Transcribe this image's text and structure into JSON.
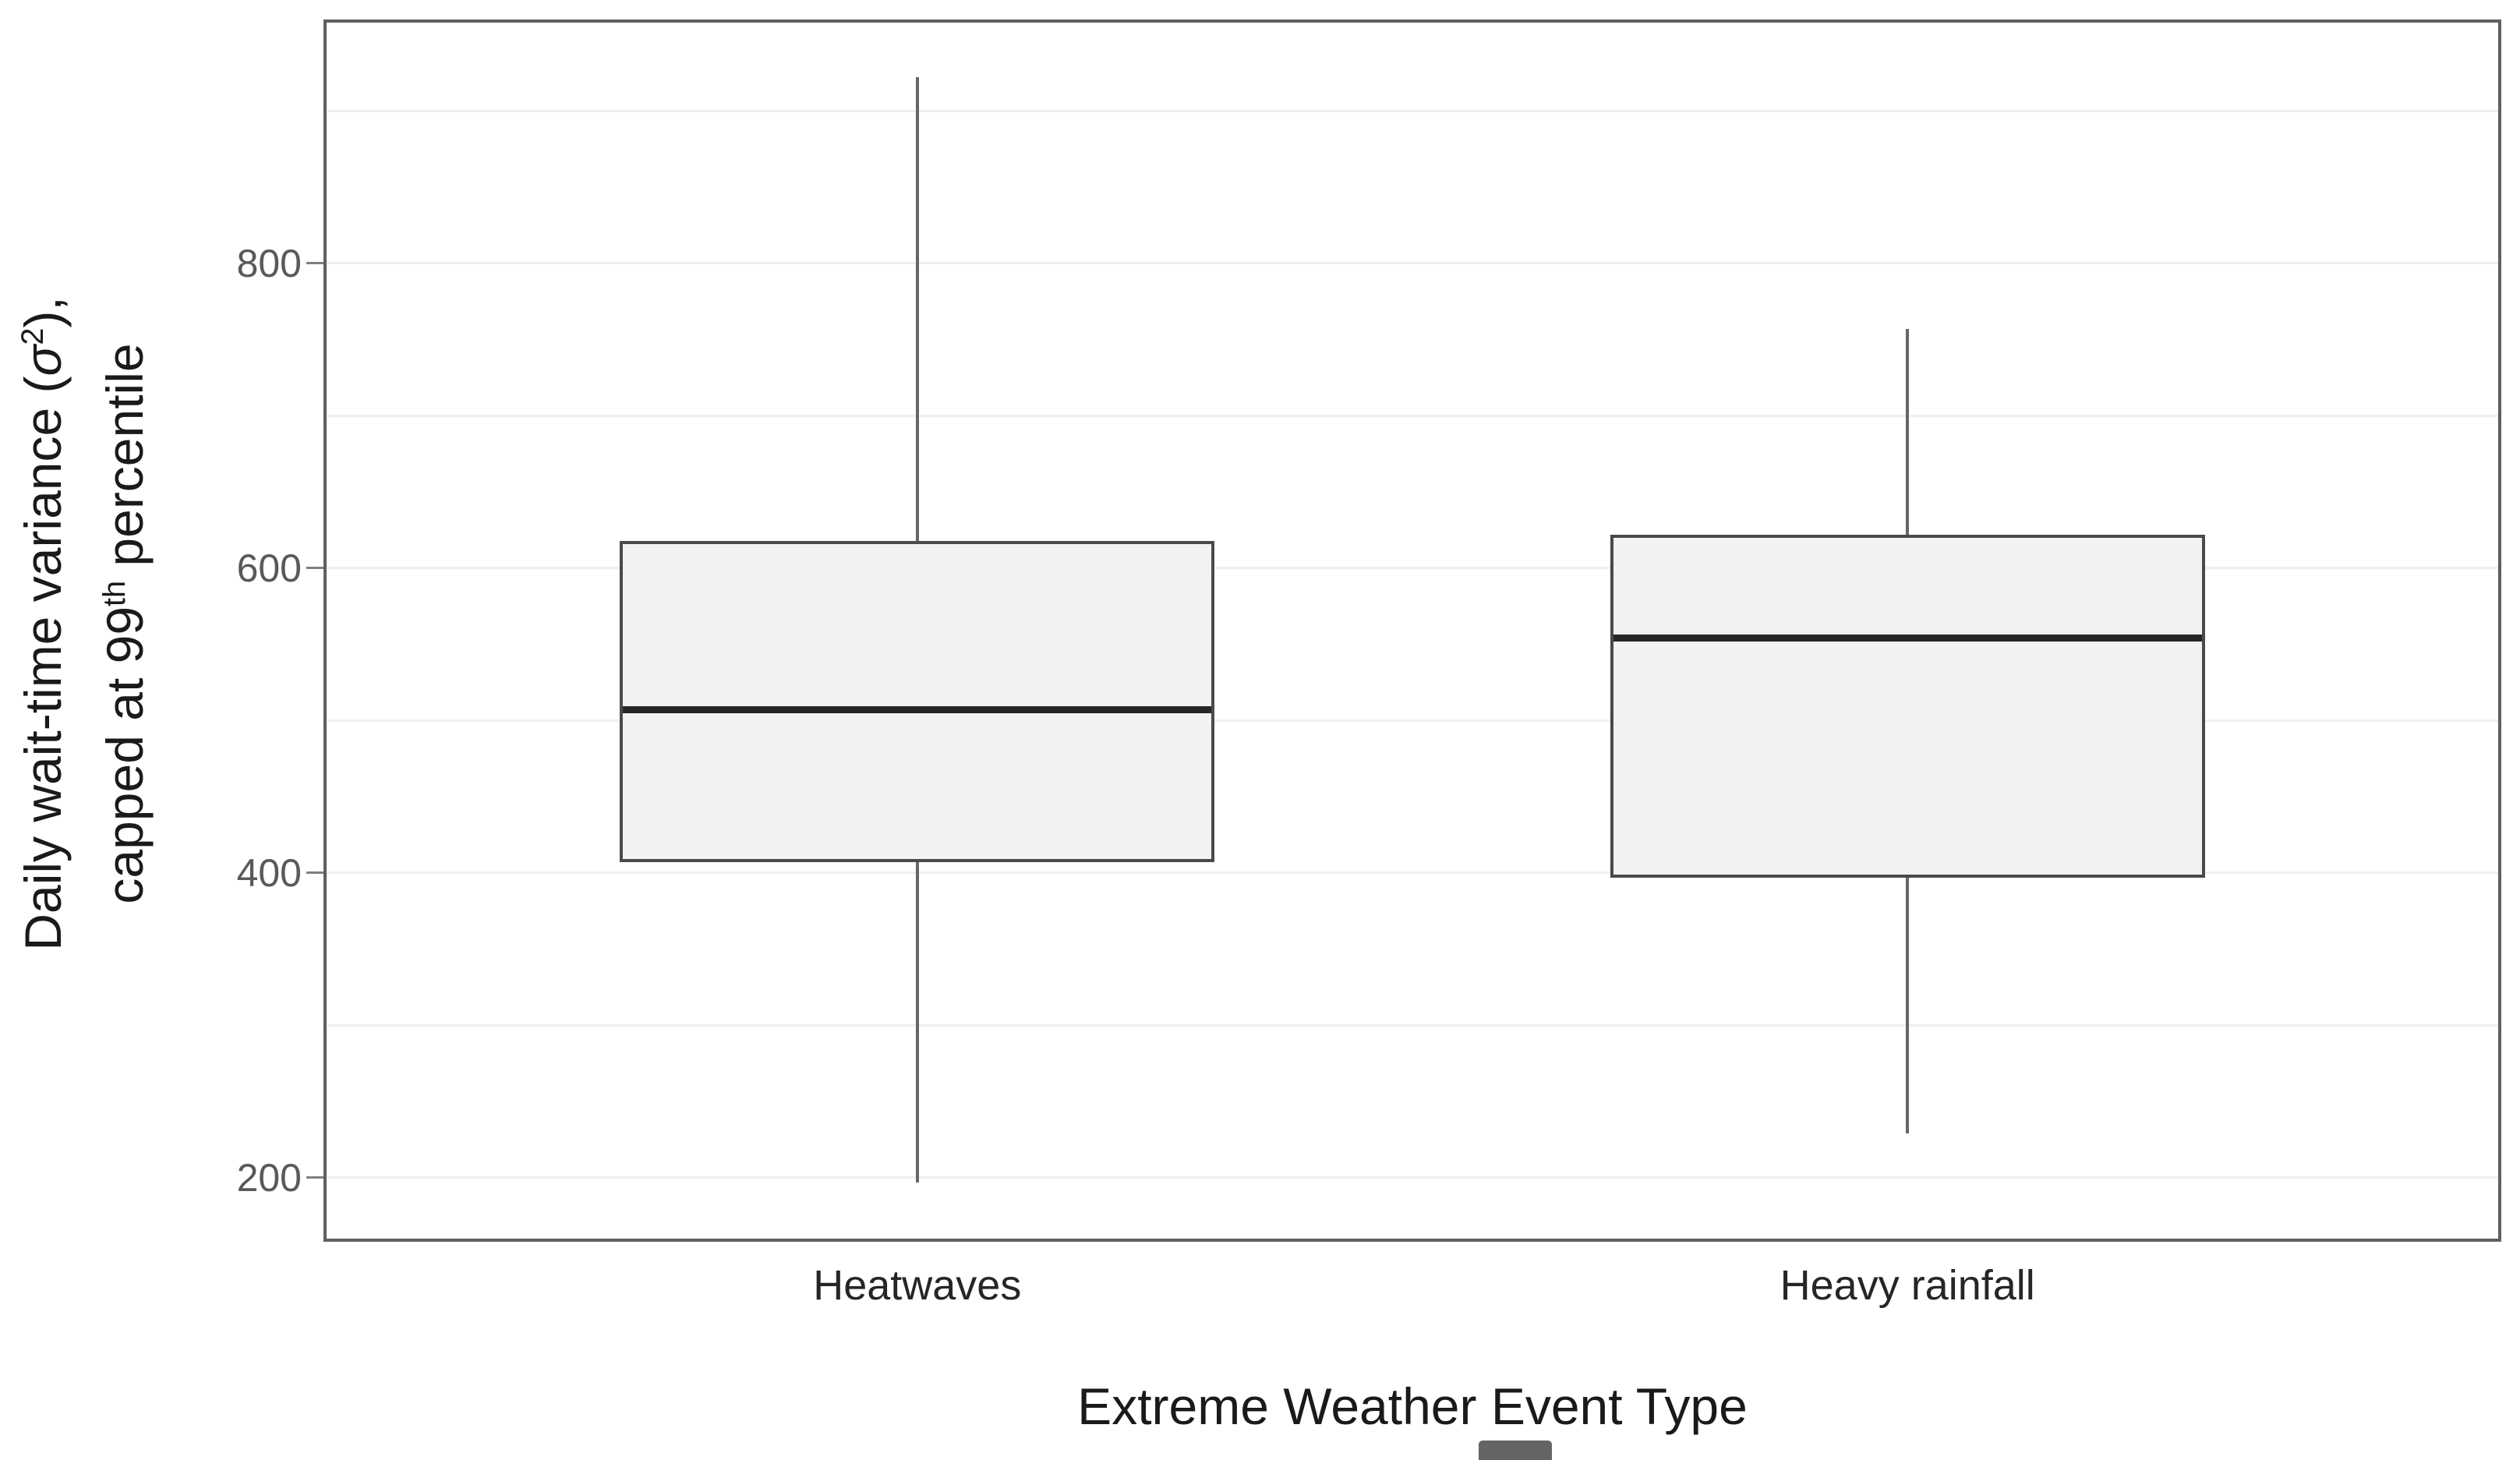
{
  "axes": {
    "y_title": {
      "line1_pre": "Daily wait-time variance (",
      "line1_sigma": "σ",
      "line1_sup": "2",
      "line1_post": "),",
      "line2_pre": "capped at 99",
      "line2_sup": "th",
      "line2_post": " percentile"
    },
    "x_title": "Extreme Weather Event Type"
  },
  "chart_data": {
    "type": "boxplot",
    "title": "",
    "xlabel": "Extreme Weather Event Type",
    "ylabel": "Daily wait-time variance (σ²), capped at 99th percentile",
    "categories": [
      "Heatwaves",
      "Heavy rainfall"
    ],
    "series": [
      {
        "name": "Heatwaves",
        "min": 197,
        "q1": 407,
        "median": 507,
        "q3": 618,
        "max": 922
      },
      {
        "name": "Heavy rainfall",
        "min": 229,
        "q1": 397,
        "median": 554,
        "q3": 622,
        "max": 757
      }
    ],
    "ylim": [
      160,
      958
    ],
    "yticks": [
      200,
      400,
      600,
      800
    ],
    "gridline_values": [
      200,
      300,
      400,
      500,
      600,
      700,
      800,
      900
    ],
    "grid": "horizontal",
    "legend": "none",
    "category_positions": [
      0.272,
      0.728
    ],
    "box_width_frac": 0.274
  },
  "colors": {
    "background": "#ffffff",
    "panel_border": "#5f5f5f",
    "gridline": "#efefef",
    "box_fill": "#f2f2f2",
    "box_border": "#4a4a4a",
    "median": "#262626",
    "whisker": "#666666",
    "tick": "#7f7f7f",
    "tick_label": "#595959",
    "axis_title": "#1a1a1a",
    "category_label": "#262626",
    "artifact": "#646464"
  }
}
